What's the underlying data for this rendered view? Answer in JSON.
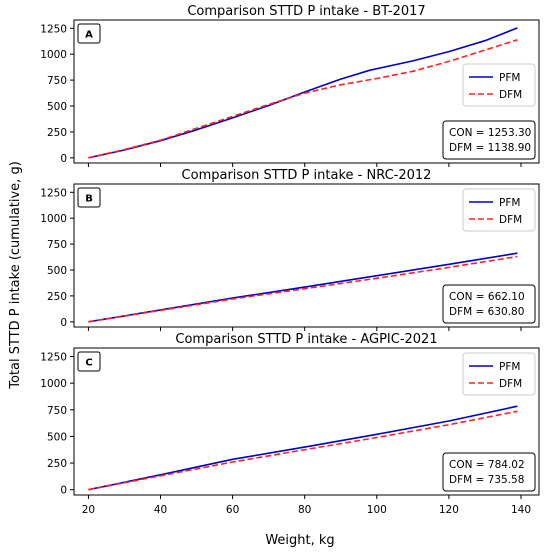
{
  "figure": {
    "ylabel": "Total STTD P intake (cumulative, g)",
    "xlabel": "Weight, kg"
  },
  "chart_data": [
    {
      "type": "line",
      "panel_label": "A",
      "title": "Comparison STTD P intake - BT-2017",
      "xlim": [
        16,
        145
      ],
      "ylim": [
        -50,
        1330
      ],
      "xticks": [
        20,
        40,
        60,
        80,
        100,
        120,
        140
      ],
      "yticks": [
        0,
        250,
        500,
        750,
        1000,
        1250
      ],
      "legend_position": "right",
      "stats": [
        {
          "label": "CON",
          "value": "1253.30"
        },
        {
          "label": "DFM",
          "value": "1138.90"
        }
      ],
      "series": [
        {
          "name": "PFM",
          "color": "#0000cc",
          "style": "solid",
          "x": [
            20,
            30,
            40,
            50,
            60,
            70,
            80,
            90,
            98,
            110,
            120,
            130,
            139
          ],
          "y": [
            0,
            75,
            165,
            270,
            385,
            505,
            635,
            760,
            845,
            935,
            1025,
            1130,
            1253.3
          ]
        },
        {
          "name": "DFM",
          "color": "#ff2222",
          "style": "dashed",
          "x": [
            20,
            30,
            40,
            50,
            60,
            70,
            80,
            90,
            100,
            110,
            120,
            130,
            139
          ],
          "y": [
            0,
            80,
            170,
            285,
            400,
            515,
            625,
            705,
            765,
            835,
            930,
            1040,
            1138.9
          ]
        }
      ]
    },
    {
      "type": "line",
      "panel_label": "B",
      "title": "Comparison STTD P intake - NRC-2012",
      "xlim": [
        16,
        145
      ],
      "ylim": [
        -50,
        1330
      ],
      "xticks": [
        20,
        40,
        60,
        80,
        100,
        120,
        140
      ],
      "yticks": [
        0,
        250,
        500,
        750,
        1000,
        1250
      ],
      "legend_position": "upper right",
      "stats": [
        {
          "label": "CON",
          "value": "662.10"
        },
        {
          "label": "DFM",
          "value": "630.80"
        }
      ],
      "series": [
        {
          "name": "PFM",
          "color": "#0000cc",
          "style": "solid",
          "x": [
            20,
            40,
            60,
            80,
            100,
            120,
            139
          ],
          "y": [
            0,
            115,
            230,
            335,
            445,
            555,
            662.1
          ]
        },
        {
          "name": "DFM",
          "color": "#ff2222",
          "style": "dashed",
          "x": [
            20,
            40,
            60,
            80,
            100,
            120,
            139
          ],
          "y": [
            0,
            110,
            220,
            320,
            420,
            525,
            630.8
          ]
        }
      ]
    },
    {
      "type": "line",
      "panel_label": "C",
      "title": "Comparison STTD P intake - AGPIC-2021",
      "xlim": [
        16,
        145
      ],
      "ylim": [
        -50,
        1330
      ],
      "xticks": [
        20,
        40,
        60,
        80,
        100,
        120,
        140
      ],
      "yticks": [
        0,
        250,
        500,
        750,
        1000,
        1250
      ],
      "legend_position": "upper right",
      "stats": [
        {
          "label": "CON",
          "value": "784.02"
        },
        {
          "label": "DFM",
          "value": "735.58"
        }
      ],
      "series": [
        {
          "name": "PFM",
          "color": "#0000cc",
          "style": "solid",
          "x": [
            20,
            40,
            60,
            80,
            100,
            120,
            139
          ],
          "y": [
            0,
            140,
            285,
            400,
            520,
            645,
            784.02
          ]
        },
        {
          "name": "DFM",
          "color": "#ff2222",
          "style": "dashed",
          "x": [
            20,
            40,
            60,
            80,
            100,
            120,
            139
          ],
          "y": [
            0,
            130,
            260,
            375,
            490,
            610,
            735.58
          ]
        }
      ]
    }
  ]
}
